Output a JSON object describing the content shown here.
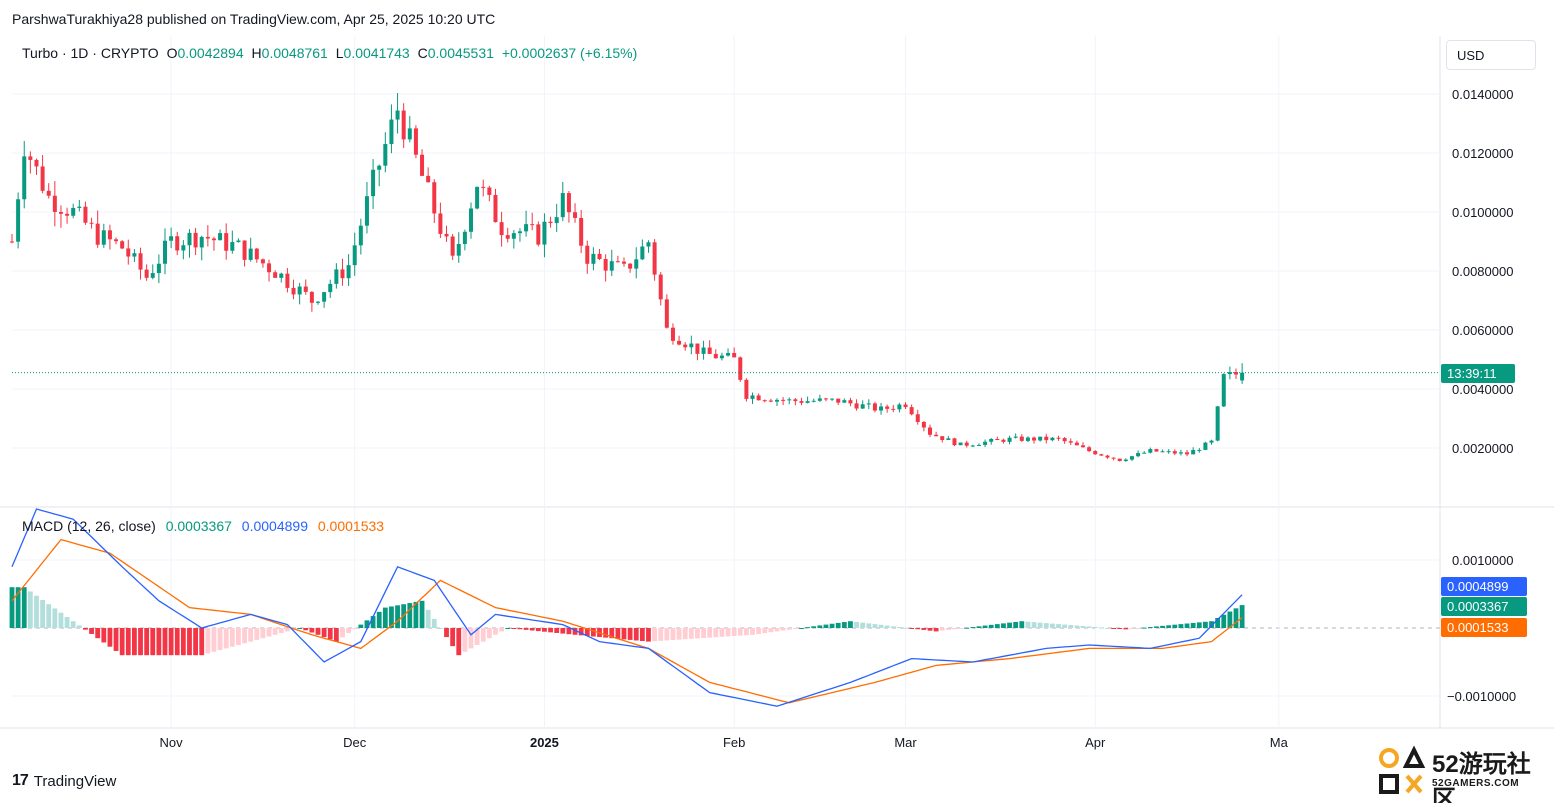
{
  "header": {
    "publisher": "ParshwaTurakhiya28 published on TradingView.com, Apr 25, 2025 10:20 UTC"
  },
  "legend": {
    "symbol": "Turbo · 1D · CRYPTO",
    "o_label": "O",
    "o_value": "0.0042894",
    "h_label": "H",
    "h_value": "0.0048761",
    "l_label": "L",
    "l_value": "0.0041743",
    "c_label": "C",
    "c_value": "0.0045531",
    "change": "+0.0002637 (+6.15%)"
  },
  "currency": "USD",
  "price_axis_labels": [
    "0.0140000",
    "0.0120000",
    "0.0100000",
    "0.0080000",
    "0.0060000",
    "0.0040000",
    "0.0020000"
  ],
  "countdown": "13:39:11",
  "macd": {
    "title": "MACD (12, 26, close)",
    "hist_value": "0.0003367",
    "macd_value": "0.0004899",
    "signal_value": "0.0001533",
    "axis_labels": [
      "0.0010000",
      "−0.0010000"
    ]
  },
  "time_axis_labels": [
    "Nov",
    "Dec",
    "2025",
    "Feb",
    "Mar",
    "Apr",
    "Ma"
  ],
  "footer": {
    "logo_text": "TradingView",
    "logo_mark": "17"
  },
  "watermark": {
    "title": "52游玩社区",
    "subtitle": "52GAMERS.COM"
  },
  "colors": {
    "up": "#089981",
    "down": "#f23645",
    "macd_line": "#2962ff",
    "signal_line": "#ff6d00",
    "hist_up_light": "#b2dfdb",
    "hist_down_light": "#ffcdd2"
  },
  "chart_data": [
    {
      "type": "candlestick",
      "title": "Turbo · 1D · CRYPTO",
      "y_axis": "price (USD)",
      "ylim": [
        0.0,
        0.0155
      ],
      "x_range": [
        "2024-10-06",
        "2025-04-25"
      ],
      "close_path": [
        [
          "2024-10-06",
          0.009
        ],
        [
          "2024-10-08",
          0.0123
        ],
        [
          "2024-10-12",
          0.0105
        ],
        [
          "2024-10-16",
          0.01
        ],
        [
          "2024-10-20",
          0.0092
        ],
        [
          "2024-10-24",
          0.0088
        ],
        [
          "2024-10-28",
          0.0078
        ],
        [
          "2024-11-01",
          0.009
        ],
        [
          "2024-11-06",
          0.0092
        ],
        [
          "2024-11-12",
          0.0088
        ],
        [
          "2024-11-18",
          0.008
        ],
        [
          "2024-11-24",
          0.007
        ],
        [
          "2024-11-30",
          0.0082
        ],
        [
          "2024-12-04",
          0.011
        ],
        [
          "2024-12-08",
          0.0135
        ],
        [
          "2024-12-12",
          0.0112
        ],
        [
          "2024-12-17",
          0.0083
        ],
        [
          "2024-12-21",
          0.011
        ],
        [
          "2024-12-25",
          0.0095
        ],
        [
          "2024-12-31",
          0.0092
        ],
        [
          "2025-01-04",
          0.0104
        ],
        [
          "2025-01-08",
          0.0085
        ],
        [
          "2025-01-14",
          0.008
        ],
        [
          "2025-01-18",
          0.009
        ],
        [
          "2025-01-21",
          0.006
        ],
        [
          "2025-01-27",
          0.0052
        ],
        [
          "2025-02-01",
          0.005
        ],
        [
          "2025-02-03",
          0.0038
        ],
        [
          "2025-02-10",
          0.0036
        ],
        [
          "2025-02-18",
          0.0036
        ],
        [
          "2025-02-25",
          0.0033
        ],
        [
          "2025-03-01",
          0.0035
        ],
        [
          "2025-03-05",
          0.0025
        ],
        [
          "2025-03-10",
          0.0021
        ],
        [
          "2025-03-18",
          0.0023
        ],
        [
          "2025-03-26",
          0.0023
        ],
        [
          "2025-03-31",
          0.0019
        ],
        [
          "2025-04-05",
          0.0016
        ],
        [
          "2025-04-10",
          0.0019
        ],
        [
          "2025-04-16",
          0.0018
        ],
        [
          "2025-04-20",
          0.0022
        ],
        [
          "2025-04-22",
          0.0044
        ],
        [
          "2025-04-25",
          0.0045531
        ]
      ],
      "last": {
        "open": 0.0042894,
        "high": 0.0048761,
        "low": 0.0041743,
        "close": 0.0045531
      }
    },
    {
      "type": "line",
      "title": "MACD (12, 26, close)",
      "ylim": [
        -0.00135,
        0.00165
      ],
      "series": [
        {
          "name": "MACD",
          "color": "#2962ff",
          "values": [
            [
              "2024-10-06",
              0.0009
            ],
            [
              "2024-10-10",
              0.00175
            ],
            [
              "2024-10-16",
              0.0016
            ],
            [
              "2024-10-24",
              0.0009
            ],
            [
              "2024-10-30",
              0.0004
            ],
            [
              "2024-11-06",
              0.0
            ],
            [
              "2024-11-14",
              0.0002
            ],
            [
              "2024-11-20",
              5e-05
            ],
            [
              "2024-11-26",
              -0.0005
            ],
            [
              "2024-12-02",
              -0.0002
            ],
            [
              "2024-12-08",
              0.0009
            ],
            [
              "2024-12-14",
              0.0007
            ],
            [
              "2024-12-20",
              -0.0001
            ],
            [
              "2024-12-24",
              0.0002
            ],
            [
              "2025-01-04",
              5e-05
            ],
            [
              "2025-01-10",
              -0.0002
            ],
            [
              "2025-01-18",
              -0.0003
            ],
            [
              "2025-01-28",
              -0.00095
            ],
            [
              "2025-02-08",
              -0.00115
            ],
            [
              "2025-02-20",
              -0.0008
            ],
            [
              "2025-03-02",
              -0.00045
            ],
            [
              "2025-03-12",
              -0.0005
            ],
            [
              "2025-03-24",
              -0.0003
            ],
            [
              "2025-03-31",
              -0.00025
            ],
            [
              "2025-04-10",
              -0.0003
            ],
            [
              "2025-04-18",
              -0.00015
            ],
            [
              "2025-04-25",
              0.0004899
            ]
          ]
        },
        {
          "name": "Signal",
          "color": "#ff6d00",
          "values": [
            [
              "2024-10-06",
              0.0004
            ],
            [
              "2024-10-14",
              0.0013
            ],
            [
              "2024-10-22",
              0.0011
            ],
            [
              "2024-11-04",
              0.0003
            ],
            [
              "2024-11-14",
              0.0002
            ],
            [
              "2024-11-24",
              -0.0001
            ],
            [
              "2024-12-02",
              -0.0003
            ],
            [
              "2024-12-08",
              0.0001
            ],
            [
              "2024-12-15",
              0.0007
            ],
            [
              "2024-12-24",
              0.0003
            ],
            [
              "2025-01-04",
              0.0001
            ],
            [
              "2025-01-18",
              -0.0003
            ],
            [
              "2025-01-28",
              -0.0008
            ],
            [
              "2025-02-10",
              -0.0011
            ],
            [
              "2025-02-24",
              -0.0008
            ],
            [
              "2025-03-06",
              -0.00055
            ],
            [
              "2025-03-18",
              -0.00045
            ],
            [
              "2025-03-31",
              -0.0003
            ],
            [
              "2025-04-12",
              -0.0003
            ],
            [
              "2025-04-20",
              -0.0002
            ],
            [
              "2025-04-25",
              0.0001533
            ]
          ]
        },
        {
          "name": "Histogram",
          "color": "#089981",
          "values": [
            [
              "2024-10-08",
              0.0006
            ],
            [
              "2024-10-16",
              0.0001
            ],
            [
              "2024-10-24",
              -0.0004
            ],
            [
              "2024-11-06",
              -0.0004
            ],
            [
              "2024-11-14",
              -0.0002
            ],
            [
              "2024-11-22",
              0.0
            ],
            [
              "2024-11-28",
              -0.0002
            ],
            [
              "2024-12-06",
              0.0003
            ],
            [
              "2024-12-12",
              0.0004
            ],
            [
              "2024-12-18",
              -0.0004
            ],
            [
              "2024-12-26",
              0.0
            ],
            [
              "2025-01-06",
              -0.0001
            ],
            [
              "2025-01-18",
              -0.0002
            ],
            [
              "2025-02-04",
              -0.0001
            ],
            [
              "2025-02-20",
              0.0001
            ],
            [
              "2025-03-06",
              -5e-05
            ],
            [
              "2025-03-20",
              0.0001
            ],
            [
              "2025-04-06",
              -2e-05
            ],
            [
              "2025-04-20",
              0.0001
            ],
            [
              "2025-04-25",
              0.0003367
            ]
          ]
        }
      ]
    }
  ]
}
